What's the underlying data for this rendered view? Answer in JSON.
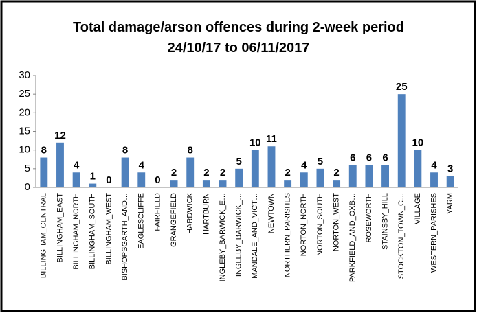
{
  "chart_data": {
    "type": "bar",
    "title": [
      "Total damage/arson offences during 2-week period",
      "24/10/17 to 06/11/2017"
    ],
    "categories": [
      "BILLINGHAM_CENTRAL",
      "BILLINGHAM_EAST",
      "BILLINGHAM_NORTH",
      "BILLINGHAM_SOUTH",
      "BILLINGHAM_WEST",
      "BISHOPSGARTH_AND…",
      "EAGLESCLIFFE",
      "FAIRFIELD",
      "GRANGEFIELD",
      "HARDWICK",
      "HARTBURN",
      "INGLEBY_BARWICK_E…",
      "INGLEBY_BARWICK_…",
      "MANDALE_AND_VICT…",
      "NEWTOWN",
      "NORTHERN_PARISHES",
      "NORTON_NORTH",
      "NORTON_SOUTH",
      "NORTON_WEST",
      "PARKFIELD_AND_OXB…",
      "ROSEWORTH",
      "STAINSBY_HILL",
      "STOCKTON_TOWN_C…",
      "VILLAGE",
      "WESTERN_PARISHES",
      "YARM"
    ],
    "values": [
      8,
      12,
      4,
      1,
      0,
      8,
      4,
      0,
      2,
      8,
      2,
      2,
      5,
      10,
      11,
      2,
      4,
      5,
      2,
      6,
      6,
      6,
      25,
      10,
      4,
      3
    ],
    "color": "#4f81bd",
    "ylim": [
      0,
      30
    ],
    "yticks": [
      0,
      5,
      10,
      15,
      20,
      25,
      30
    ],
    "grid": false
  }
}
